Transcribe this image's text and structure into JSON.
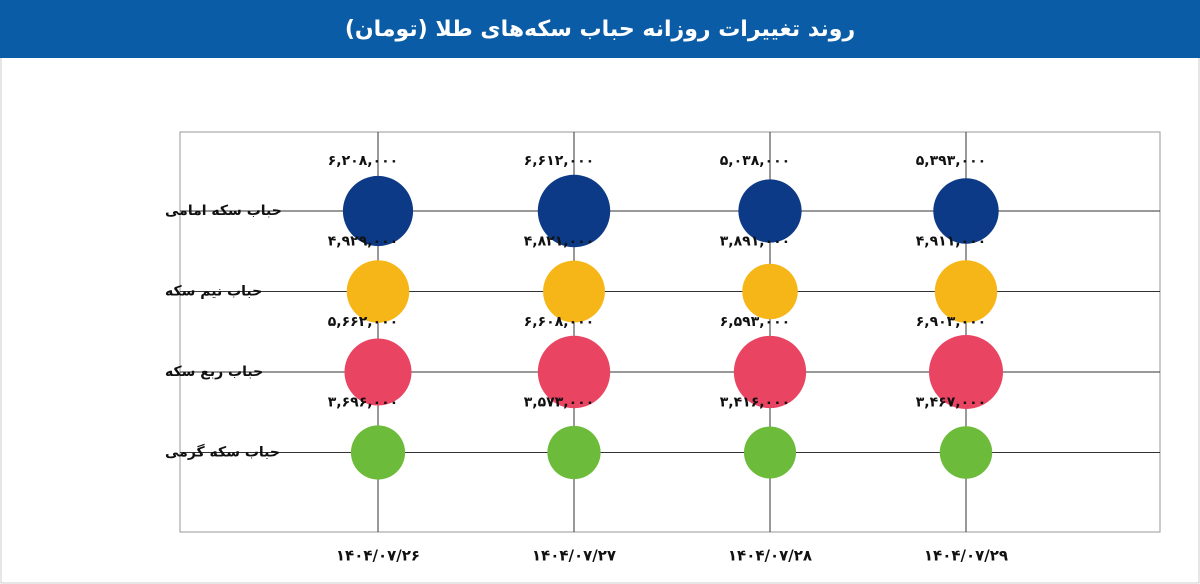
{
  "chart_data": {
    "type": "bubble",
    "title": "روند تغییرات روزانه حباب سکه‌های طلا (تومان)",
    "categories": [
      "۱۴۰۴/۰۷/۲۶",
      "۱۴۰۴/۰۷/۲۷",
      "۱۴۰۴/۰۷/۲۸",
      "۱۴۰۴/۰۷/۲۹"
    ],
    "series": [
      {
        "name": "حباب سکه امامی",
        "color": "#0d3a86",
        "values": [
          6208000,
          6612000,
          5038000,
          5393000
        ],
        "value_labels": [
          "۶,۲۰۸,۰۰۰",
          "۶,۶۱۲,۰۰۰",
          "۵,۰۳۸,۰۰۰",
          "۵,۳۹۳,۰۰۰"
        ]
      },
      {
        "name": "حباب نیم سکه",
        "color": "#f7b617",
        "values": [
          4929000,
          4821000,
          3891000,
          4911000
        ],
        "value_labels": [
          "۴,۹۲۹,۰۰۰",
          "۴,۸۲۱,۰۰۰",
          "۳,۸۹۱,۰۰۰",
          "۴,۹۱۱,۰۰۰"
        ]
      },
      {
        "name": "حباب ربع سکه",
        "color": "#ea4463",
        "values": [
          5662000,
          6608000,
          6593000,
          6903000
        ],
        "value_labels": [
          "۵,۶۶۲,۰۰۰",
          "۶,۶۰۸,۰۰۰",
          "۶,۵۹۳,۰۰۰",
          "۶,۹۰۳,۰۰۰"
        ]
      },
      {
        "name": "حباب سکه گرمی",
        "color": "#6dbb3b",
        "values": [
          3696000,
          3573000,
          3416000,
          3467000
        ],
        "value_labels": [
          "۳,۶۹۶,۰۰۰",
          "۳,۵۷۳,۰۰۰",
          "۳,۴۱۶,۰۰۰",
          "۳,۴۶۷,۰۰۰"
        ]
      }
    ]
  }
}
